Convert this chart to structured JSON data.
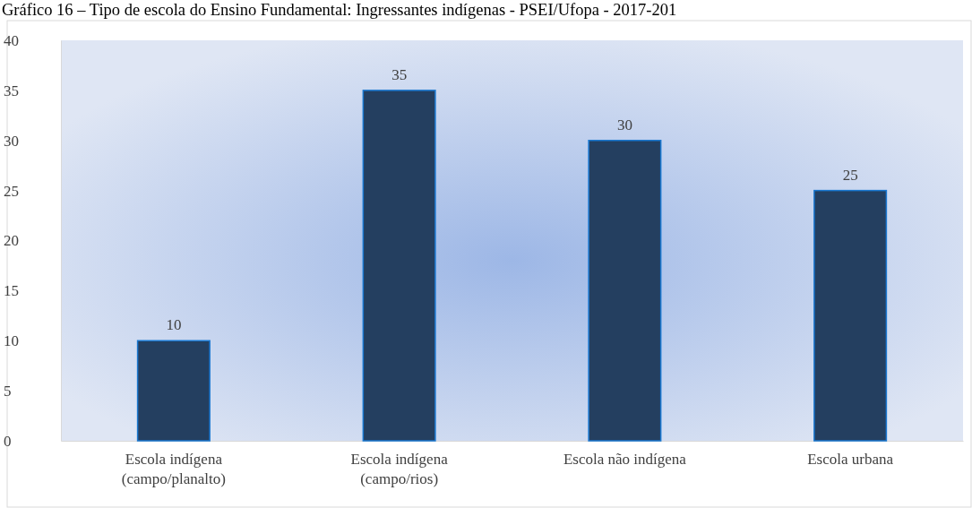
{
  "chart_data": {
    "type": "bar",
    "title": "Gráfico 16 – Tipo de escola do Ensino Fundamental: Ingressantes indígenas - PSEI/Ufopa - 2017-201",
    "categories": [
      "Escola indígena\n(campo/planalto)",
      "Escola indígena\n(campo/rios)",
      "Escola não indígena",
      "Escola urbana"
    ],
    "values": [
      10,
      35,
      30,
      25
    ],
    "color": "#243f60",
    "ylim": [
      0,
      40
    ],
    "yticks": [
      0,
      5,
      10,
      15,
      20,
      25,
      30,
      35,
      40
    ],
    "grid": false,
    "data_labels": true
  }
}
